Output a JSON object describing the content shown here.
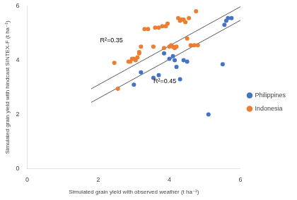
{
  "chart_data": {
    "type": "scatter",
    "xlabel": "Simulated grain yield with observed weather (t ha⁻¹)",
    "ylabel": "Simulated grain yield with hindcast SINTEX-F (t ha⁻¹)",
    "series": [
      {
        "name": "Indonesia",
        "color": "#ED7D31",
        "marker": "circle",
        "x": [
          2.45,
          2.55,
          2.85,
          2.9,
          2.95,
          3.0,
          3.05,
          3.1,
          3.15,
          3.15,
          3.2,
          3.3,
          3.4,
          3.55,
          3.6,
          3.7,
          3.8,
          3.85,
          3.9,
          3.95,
          4.0,
          4.05,
          4.1,
          4.15,
          4.2,
          4.25,
          4.3,
          4.35,
          4.4,
          4.45,
          4.5,
          4.55,
          4.6,
          4.7,
          4.75,
          4.8
        ],
        "values": [
          3.9,
          2.95,
          3.95,
          3.95,
          4.05,
          4.05,
          4.0,
          4.1,
          4.25,
          4.3,
          4.5,
          5.15,
          5.15,
          4.5,
          5.2,
          5.2,
          5.25,
          4.45,
          5.25,
          5.35,
          4.5,
          4.55,
          4.5,
          4.45,
          4.5,
          5.55,
          5.45,
          5.5,
          5.5,
          5.4,
          4.8,
          5.55,
          4.55,
          4.55,
          5.8,
          4.55
        ]
      },
      {
        "name": "Philippines",
        "color": "#4472C4",
        "marker": "circle",
        "x": [
          3.0,
          3.2,
          3.55,
          3.7,
          3.85,
          4.0,
          4.1,
          4.15,
          4.2,
          4.3,
          4.4,
          4.5,
          5.5,
          5.55,
          5.6,
          5.65,
          5.75,
          5.1
        ],
        "values": [
          3.1,
          3.55,
          3.35,
          3.45,
          4.25,
          4.05,
          4.15,
          4.0,
          3.75,
          3.3,
          4.0,
          3.95,
          3.85,
          5.3,
          5.45,
          5.55,
          5.55,
          2.0
        ]
      },
      {
        "type": "line",
        "color": "#595959",
        "line_style": "solid",
        "x": [
          1.8,
          6.0
        ],
        "values": [
          2.946,
          5.97
        ]
      },
      {
        "type": "line",
        "color": "#595959",
        "line_style": "solid",
        "x": [
          1.8,
          6.0
        ],
        "values": [
          2.446,
          5.47
        ]
      }
    ],
    "annotations": [
      {
        "text": "R²=0.35",
        "x": 2.05,
        "y": 4.6
      },
      {
        "text": "R²=0.45",
        "x": 3.55,
        "y": 3.1
      }
    ],
    "xlim": [
      0.0,
      6.0
    ],
    "ylim": [
      0.0,
      6.0
    ],
    "xticks": [
      0.0,
      2.0,
      4.0,
      6.0
    ],
    "yticks": [
      0.0,
      2.0,
      4.0,
      6.0
    ],
    "grid": false,
    "legend": "right"
  }
}
